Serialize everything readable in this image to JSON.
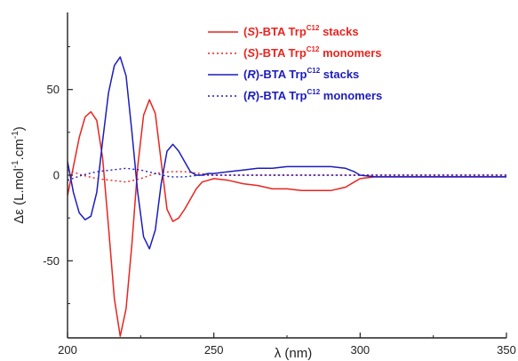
{
  "chart_data": {
    "type": "line",
    "title": "",
    "xlabel": "λ (nm)",
    "ylabel": "Δε (L.mol-1.cm-1)",
    "ylabel_parts": {
      "prefix": "Δε (L.mol",
      "exp1": "-1",
      "mid": ".cm",
      "exp2": "-1",
      "suffix": ")"
    },
    "xlim": [
      200,
      350
    ],
    "ylim": [
      -95,
      95
    ],
    "x_ticks": [
      200,
      250,
      300,
      350
    ],
    "y_ticks": [
      -50,
      0,
      50
    ],
    "grid": false,
    "legend_position": "top-right",
    "series": [
      {
        "name": "(S)-BTA TrpC12 stacks",
        "label_parts": {
          "open": "(",
          "config": "S",
          "rest": ")-BTA Trp",
          "sup": "C12",
          "tail": " stacks"
        },
        "color": "#e8251f",
        "style": "solid",
        "points": [
          [
            200,
            -12
          ],
          [
            202,
            5
          ],
          [
            204,
            22
          ],
          [
            206,
            34
          ],
          [
            208,
            37
          ],
          [
            210,
            32
          ],
          [
            212,
            10
          ],
          [
            214,
            -30
          ],
          [
            216,
            -72
          ],
          [
            218,
            -94
          ],
          [
            220,
            -78
          ],
          [
            222,
            -40
          ],
          [
            224,
            5
          ],
          [
            226,
            35
          ],
          [
            228,
            44
          ],
          [
            230,
            36
          ],
          [
            232,
            8
          ],
          [
            234,
            -20
          ],
          [
            236,
            -27
          ],
          [
            238,
            -25
          ],
          [
            240,
            -20
          ],
          [
            242,
            -14
          ],
          [
            244,
            -8
          ],
          [
            246,
            -4
          ],
          [
            248,
            -3
          ],
          [
            250,
            -2
          ],
          [
            255,
            -3
          ],
          [
            260,
            -5
          ],
          [
            265,
            -6
          ],
          [
            270,
            -8
          ],
          [
            275,
            -8
          ],
          [
            280,
            -9
          ],
          [
            285,
            -9
          ],
          [
            290,
            -9
          ],
          [
            295,
            -7
          ],
          [
            298,
            -4
          ],
          [
            300,
            -2
          ],
          [
            305,
            -1
          ],
          [
            310,
            -1
          ],
          [
            320,
            -1
          ],
          [
            330,
            -1
          ],
          [
            340,
            -1
          ],
          [
            350,
            -1
          ]
        ]
      },
      {
        "name": "(S)-BTA TrpC12 monomers",
        "label_parts": {
          "open": "(",
          "config": "S",
          "rest": ")-BTA Trp",
          "sup": "C12",
          "tail": " monomers"
        },
        "color": "#e8251f",
        "style": "dotted",
        "points": [
          [
            200,
            3
          ],
          [
            205,
            0
          ],
          [
            210,
            -2
          ],
          [
            215,
            -3
          ],
          [
            220,
            -4
          ],
          [
            225,
            -2
          ],
          [
            230,
            1
          ],
          [
            235,
            2
          ],
          [
            240,
            2
          ],
          [
            245,
            1
          ],
          [
            250,
            0
          ],
          [
            260,
            0
          ],
          [
            270,
            0
          ],
          [
            280,
            0
          ],
          [
            290,
            0
          ],
          [
            300,
            0
          ],
          [
            310,
            0
          ],
          [
            320,
            0
          ],
          [
            330,
            0
          ],
          [
            340,
            0
          ],
          [
            350,
            0
          ]
        ]
      },
      {
        "name": "(R)-BTA TrpC12 stacks",
        "label_parts": {
          "open": "(",
          "config": "R",
          "rest": ")-BTA Trp",
          "sup": "C12",
          "tail": " stacks"
        },
        "color": "#1c1cbf",
        "style": "solid",
        "points": [
          [
            200,
            8
          ],
          [
            202,
            -10
          ],
          [
            204,
            -22
          ],
          [
            206,
            -26
          ],
          [
            208,
            -24
          ],
          [
            210,
            -10
          ],
          [
            212,
            20
          ],
          [
            214,
            48
          ],
          [
            216,
            64
          ],
          [
            218,
            69
          ],
          [
            220,
            58
          ],
          [
            222,
            25
          ],
          [
            224,
            -10
          ],
          [
            226,
            -36
          ],
          [
            228,
            -43
          ],
          [
            230,
            -32
          ],
          [
            232,
            -5
          ],
          [
            234,
            14
          ],
          [
            236,
            18
          ],
          [
            238,
            14
          ],
          [
            240,
            8
          ],
          [
            242,
            2
          ],
          [
            244,
            0
          ],
          [
            246,
            0
          ],
          [
            248,
            1
          ],
          [
            250,
            1
          ],
          [
            255,
            2
          ],
          [
            260,
            3
          ],
          [
            265,
            4
          ],
          [
            270,
            4
          ],
          [
            275,
            5
          ],
          [
            280,
            5
          ],
          [
            285,
            5
          ],
          [
            290,
            5
          ],
          [
            295,
            4
          ],
          [
            298,
            2
          ],
          [
            300,
            0
          ],
          [
            305,
            -1
          ],
          [
            310,
            -1
          ],
          [
            320,
            -1
          ],
          [
            330,
            -1
          ],
          [
            340,
            -1
          ],
          [
            350,
            -1
          ]
        ]
      },
      {
        "name": "(R)-BTA TrpC12 monomers",
        "label_parts": {
          "open": "(",
          "config": "R",
          "rest": ")-BTA Trp",
          "sup": "C12",
          "tail": " monomers"
        },
        "color": "#1c1cbf",
        "style": "dotted",
        "points": [
          [
            200,
            -3
          ],
          [
            205,
            0
          ],
          [
            210,
            2
          ],
          [
            215,
            3
          ],
          [
            220,
            4
          ],
          [
            225,
            3
          ],
          [
            230,
            1
          ],
          [
            235,
            -1
          ],
          [
            240,
            -1
          ],
          [
            245,
            0
          ],
          [
            250,
            0
          ],
          [
            260,
            0
          ],
          [
            270,
            0
          ],
          [
            280,
            0
          ],
          [
            290,
            0
          ],
          [
            300,
            0
          ],
          [
            310,
            0
          ],
          [
            320,
            0
          ],
          [
            330,
            0
          ],
          [
            340,
            0
          ],
          [
            350,
            0
          ]
        ]
      }
    ]
  }
}
